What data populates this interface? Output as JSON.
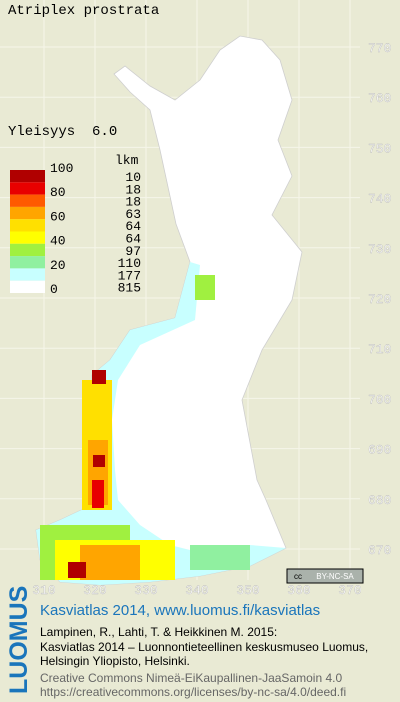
{
  "header": {
    "title": "Atriplex prostrata",
    "frequency": "Yleisyys  6.0"
  },
  "legend": {
    "levels": [
      100,
      80,
      60,
      40,
      20,
      0
    ],
    "count_heading": "lkm",
    "counts": [
      10,
      18,
      18,
      63,
      64,
      64,
      97,
      110,
      177,
      815
    ],
    "colors": [
      "#b00000",
      "#e80000",
      "#ff5a00",
      "#ffa500",
      "#ffe000",
      "#ffff00",
      "#a0f040",
      "#90f0a0",
      "#c8ffff",
      "#ffffff"
    ]
  },
  "map": {
    "y_labels": [
      770,
      760,
      750,
      740,
      730,
      720,
      710,
      700,
      690,
      680,
      670
    ],
    "x_labels": [
      310,
      320,
      330,
      340,
      350,
      360,
      370
    ]
  },
  "license_badge": {
    "icon": "cc",
    "text": "BY-NC-SA"
  },
  "footer": {
    "logo": "LUOMUS",
    "heading": "Kasviatlas 2014, www.luomus.fi/kasviatlas",
    "citation": [
      "Lampinen, R., Lahti, T. & Heikkinen M. 2015:",
      "Kasviatlas 2014 – Luonnontieteellinen keskusmuseo Luomus,",
      "Helsingin Yliopisto, Helsinki."
    ],
    "license": [
      "Creative Commons Nimeä-EiKaupallinen-JaaSamoin 4.0",
      "https://creativecommons.org/licenses/by-nc-sa/4.0/deed.fi"
    ]
  }
}
